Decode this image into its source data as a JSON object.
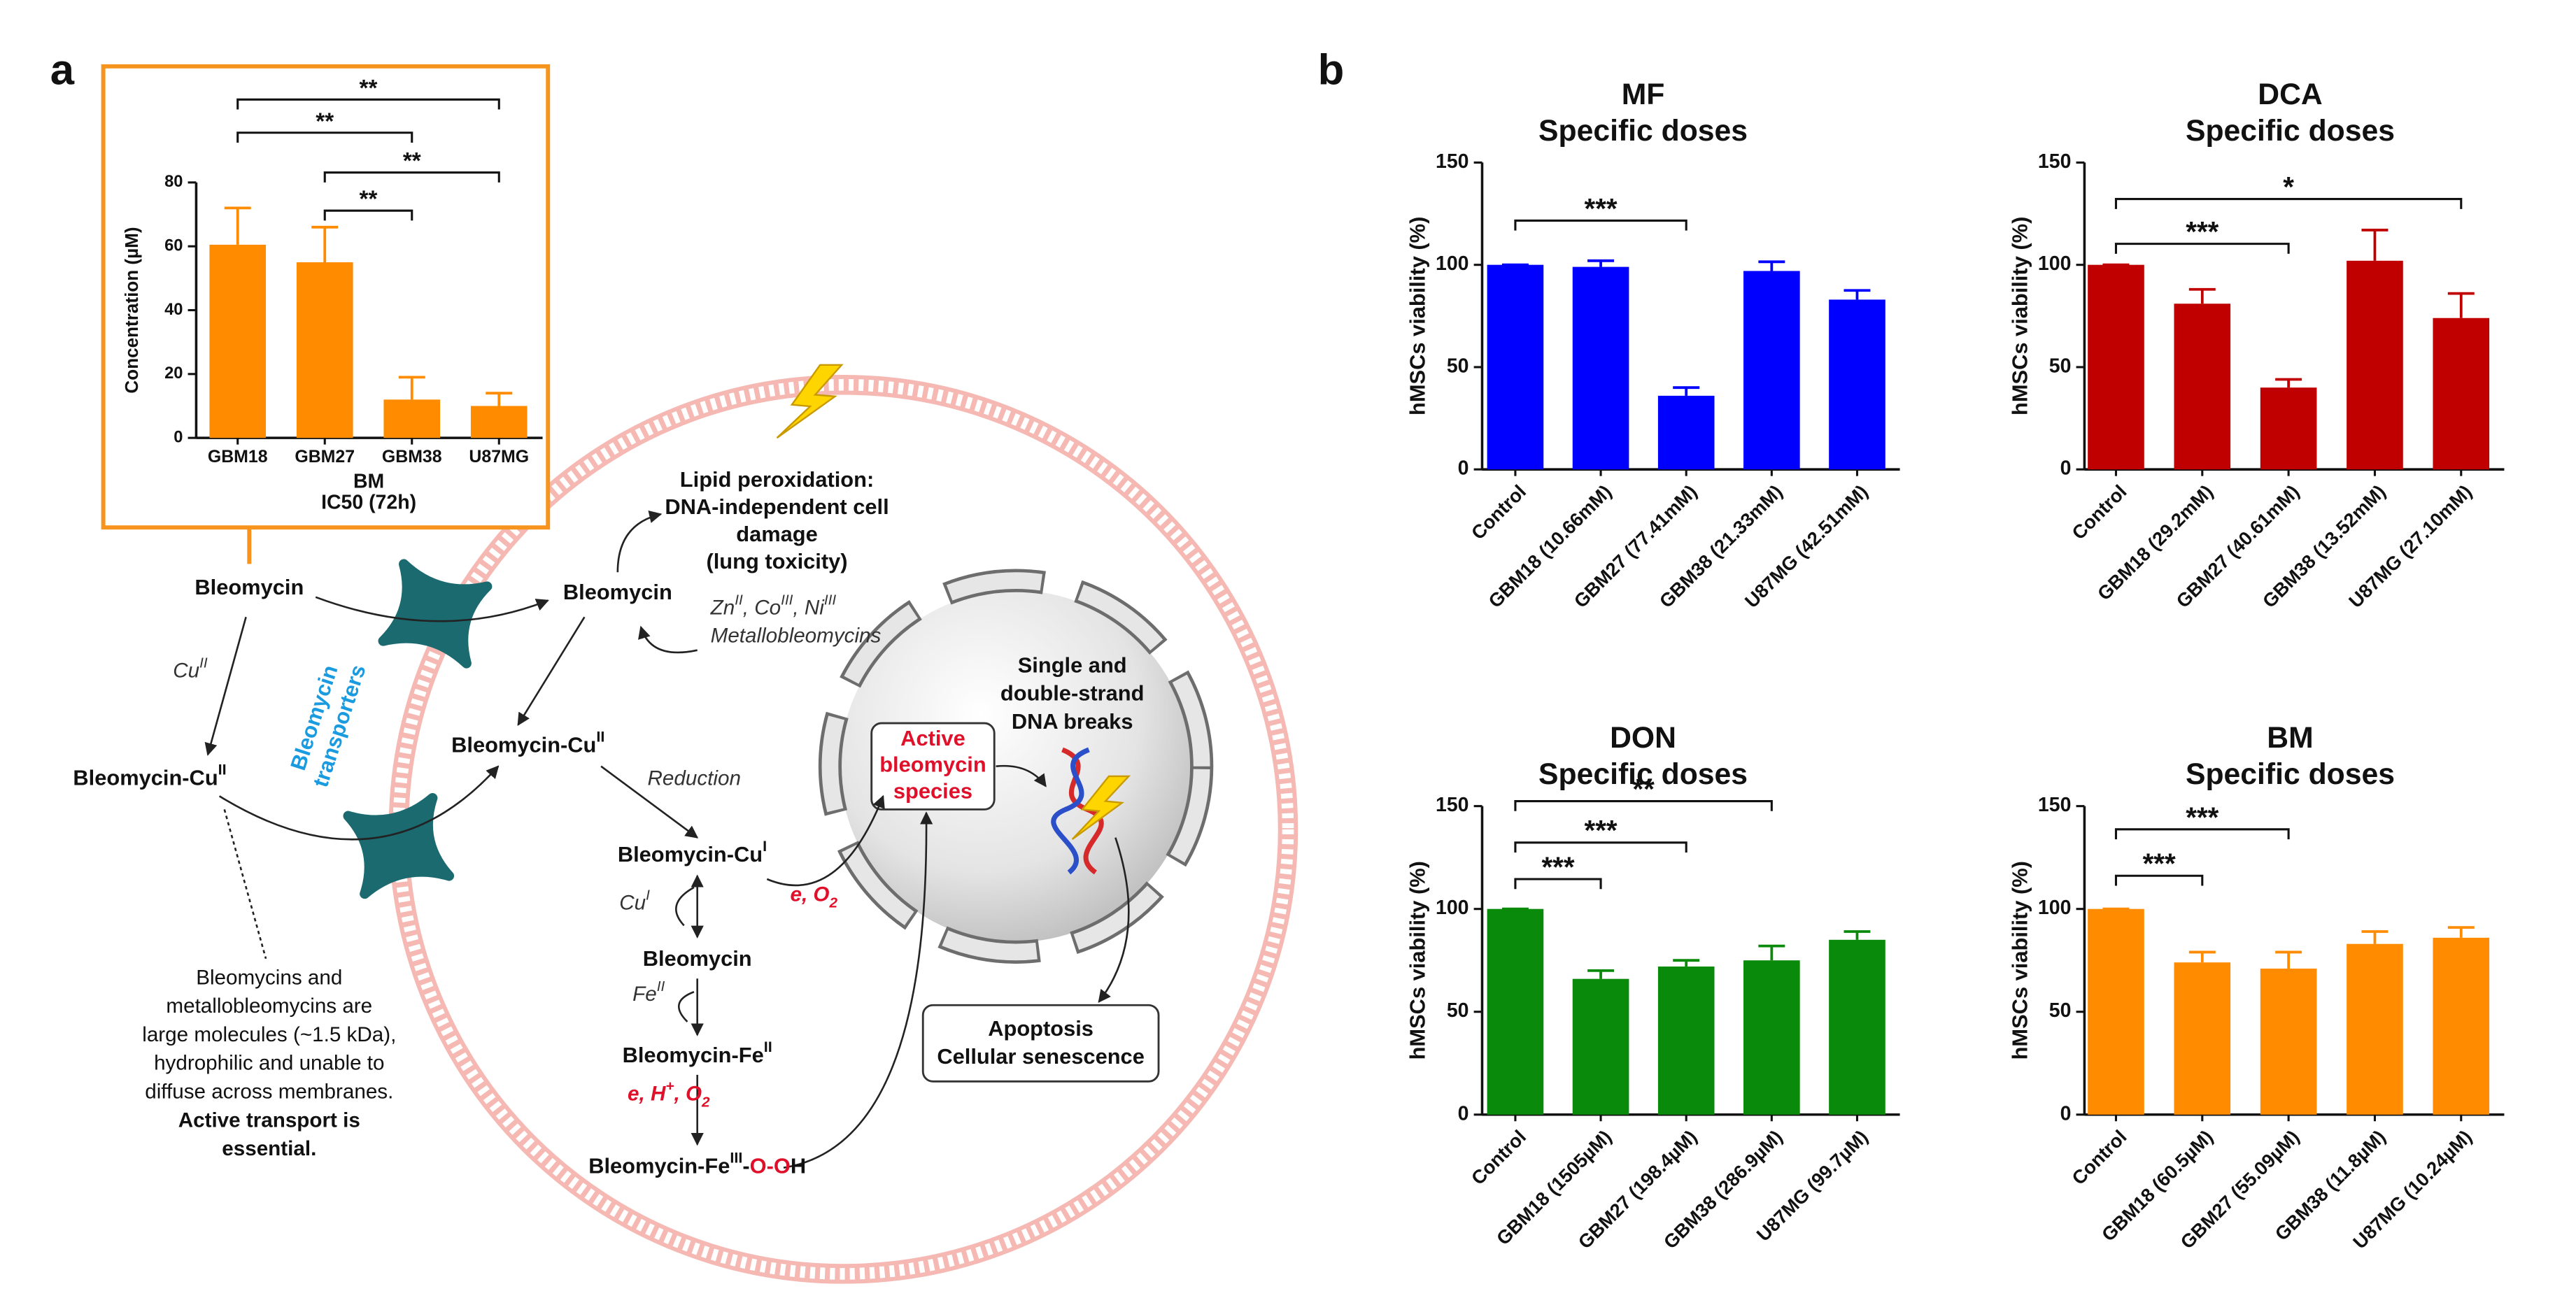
{
  "panel_labels": [
    "a",
    "b"
  ],
  "chart_data": [
    {
      "type": "bar",
      "xlabel": [
        "BM",
        "IC50 (72h)"
      ],
      "ylabel": "Concentration (µM)",
      "categories": [
        "GBM18",
        "GBM27",
        "GBM38",
        "U87MG"
      ],
      "values": [
        60.5,
        55,
        12,
        10
      ],
      "errors": [
        11.5,
        11,
        7,
        4
      ],
      "color": "#ff8c00",
      "ylim": [
        0,
        80
      ],
      "yticks": [
        0,
        20,
        40,
        60,
        80
      ],
      "significance": [
        {
          "label": "**",
          "from": "GBM18",
          "to": "U87MG"
        },
        {
          "label": "**",
          "from": "GBM18",
          "to": "GBM38"
        },
        {
          "label": "**",
          "from": "GBM27",
          "to": "U87MG"
        },
        {
          "label": "**",
          "from": "GBM27",
          "to": "GBM38"
        }
      ]
    },
    {
      "type": "bar",
      "title": [
        "MF",
        "Specific doses"
      ],
      "ylabel": "hMSCs viability (%)",
      "categories": [
        "Control",
        "GBM18 (10.66mM)",
        "GBM27 (77.41mM)",
        "GBM38 (21.33mM)",
        "U87MG (42.51mM)"
      ],
      "values": [
        100,
        99,
        36,
        97,
        83
      ],
      "errors": [
        0,
        3,
        4,
        4.5,
        4.5
      ],
      "color": "#0000ff",
      "ylim": [
        0,
        150
      ],
      "yticks": [
        0,
        50,
        100,
        150
      ],
      "significance": [
        {
          "label": "***",
          "from": "Control",
          "to": "GBM27 (77.41mM)"
        }
      ]
    },
    {
      "type": "bar",
      "title": [
        "DCA",
        "Specific doses"
      ],
      "ylabel": "hMSCs viability (%)",
      "categories": [
        "Control",
        "GBM18 (29.2mM)",
        "GBM27 (40.61mM)",
        "GBM38 (13.52mM)",
        "U87MG (27.10mM)"
      ],
      "values": [
        100,
        81,
        40,
        102,
        74
      ],
      "errors": [
        0,
        7,
        4,
        15,
        12
      ],
      "color": "#c00000",
      "ylim": [
        0,
        150
      ],
      "yticks": [
        0,
        50,
        100,
        150
      ],
      "significance": [
        {
          "label": "***",
          "from": "Control",
          "to": "GBM27 (40.61mM)"
        },
        {
          "label": "*",
          "from": "Control",
          "to": "U87MG (27.10mM)"
        }
      ]
    },
    {
      "type": "bar",
      "title": [
        "DON",
        "Specific doses"
      ],
      "ylabel": "hMSCs viability (%)",
      "categories": [
        "Control",
        "GBM18 (1505µM)",
        "GBM27 (198.4µM)",
        "GBM38 (286.9µM)",
        "U87MG (99.7µM)"
      ],
      "values": [
        100,
        66,
        72,
        75,
        85
      ],
      "errors": [
        0,
        4,
        3,
        7,
        4
      ],
      "color": "#0a8a0a",
      "ylim": [
        0,
        150
      ],
      "yticks": [
        0,
        50,
        100,
        150
      ],
      "significance": [
        {
          "label": "***",
          "from": "Control",
          "to": "GBM18 (1505µM)"
        },
        {
          "label": "***",
          "from": "Control",
          "to": "GBM27 (198.4µM)"
        },
        {
          "label": "**",
          "from": "Control",
          "to": "GBM38 (286.9µM)"
        }
      ]
    },
    {
      "type": "bar",
      "title": [
        "BM",
        "Specific doses"
      ],
      "ylabel": "hMSCs viability (%)",
      "categories": [
        "Control",
        "GBM18 (60.5µM)",
        "GBM27 (55.09µM)",
        "GBM38 (11.8µM)",
        "U87MG (10.24µM)"
      ],
      "values": [
        100,
        74,
        71,
        83,
        86
      ],
      "errors": [
        0,
        5,
        8,
        6,
        5
      ],
      "color": "#ff8c00",
      "ylim": [
        0,
        150
      ],
      "yticks": [
        0,
        50,
        100,
        150
      ],
      "significance": [
        {
          "label": "***",
          "from": "Control",
          "to": "GBM18 (60.5µM)"
        },
        {
          "label": "***",
          "from": "Control",
          "to": "GBM27 (55.09µM)"
        }
      ]
    }
  ],
  "diagram": {
    "lipid_peroxidation": [
      [
        {
          "text": "Lipid peroxidation:"
        }
      ],
      [
        {
          "text": "DNA-independent cell"
        }
      ],
      [
        {
          "text": "damage"
        }
      ],
      [
        {
          "text": "(lung toxicity)"
        }
      ]
    ],
    "bleomycin_outside": [
      [
        {
          "text": "Bleomycin"
        }
      ]
    ],
    "bleomycin_inside": [
      [
        {
          "text": "Bleomycin"
        }
      ]
    ],
    "copper_uptake": [
      [
        {
          "text": "Cu"
        },
        {
          "text": "II",
          "sup": true
        }
      ]
    ],
    "transporters": [
      [
        {
          "text": "Bleomycin",
          "color": "#1a9be0"
        }
      ],
      [
        {
          "text": "transporters",
          "color": "#1a9be0"
        }
      ]
    ],
    "bleomycin_cu_outside": [
      [
        {
          "text": "Bleomycin-Cu"
        },
        {
          "text": "II",
          "sup": true
        }
      ]
    ],
    "bleomycin_cu_inside": [
      [
        {
          "text": "Bleomycin-Cu"
        },
        {
          "text": "II",
          "sup": true
        }
      ]
    ],
    "metallobleomycins": [
      [
        {
          "text": "Zn"
        },
        {
          "text": "II",
          "sup": true
        },
        {
          "text": ", Co"
        },
        {
          "text": "III",
          "sup": true
        },
        {
          "text": ", Ni"
        },
        {
          "text": "III",
          "sup": true
        }
      ],
      [
        {
          "text": "Metallobleomycins"
        }
      ]
    ],
    "reduction": [
      [
        {
          "text": "Reduction"
        }
      ]
    ],
    "bleomycin_cu_i": [
      [
        {
          "text": "Bleomycin-Cu"
        },
        {
          "text": "I",
          "sup": true
        }
      ]
    ],
    "oxidation_1": [
      [
        {
          "text": "e, O",
          "color": "#e0102a"
        },
        {
          "text": "2",
          "sub": true,
          "color": "#e0102a"
        }
      ]
    ],
    "copper_release": [
      [
        {
          "text": "Cu"
        },
        {
          "text": "I",
          "sup": true
        }
      ]
    ],
    "bleomycin_free": [
      [
        {
          "text": "Bleomycin"
        }
      ]
    ],
    "iron_binding": [
      [
        {
          "text": "Fe"
        },
        {
          "text": "II",
          "sup": true
        }
      ]
    ],
    "bleomycin_fe_ii": [
      [
        {
          "text": "Bleomycin-Fe"
        },
        {
          "text": "II",
          "sup": true
        }
      ]
    ],
    "oxidation_2": [
      [
        {
          "text": "e, H",
          "color": "#e0102a"
        },
        {
          "text": "+",
          "sup": true,
          "color": "#e0102a"
        },
        {
          "text": ", O",
          "color": "#e0102a"
        },
        {
          "text": "2",
          "sub": true,
          "color": "#e0102a"
        }
      ]
    ],
    "bleomycin_fe_iii": [
      [
        {
          "text": "Bleomycin-Fe"
        },
        {
          "text": "III",
          "sup": true
        },
        {
          "text": "-"
        },
        {
          "text": "O-O",
          "color": "#e0102a"
        },
        {
          "text": "H"
        }
      ]
    ],
    "active_species": [
      [
        {
          "text": "Active",
          "color": "#e0102a"
        }
      ],
      [
        {
          "text": "bleomycin",
          "color": "#e0102a"
        }
      ],
      [
        {
          "text": "species",
          "color": "#e0102a"
        }
      ]
    ],
    "dna_breaks": [
      [
        {
          "text": "Single and"
        }
      ],
      [
        {
          "text": "double-strand"
        }
      ],
      [
        {
          "text": "DNA breaks"
        }
      ]
    ],
    "outcomes": [
      [
        {
          "text": "Apoptosis"
        }
      ],
      [
        {
          "text": "Cellular senescence"
        }
      ]
    ],
    "transport_note": [
      [
        {
          "text": "Bleomycins and"
        }
      ],
      [
        {
          "text": "metallobleomycins are"
        }
      ],
      [
        {
          "text": "large molecules (~1.5 kDa),"
        }
      ],
      [
        {
          "text": "hydrophilic and unable to"
        }
      ],
      [
        {
          "text": "diffuse across membranes."
        }
      ],
      [
        {
          "text": "Active transport is",
          "bold": true
        }
      ],
      [
        {
          "text": "essential.",
          "bold": true
        }
      ]
    ]
  }
}
